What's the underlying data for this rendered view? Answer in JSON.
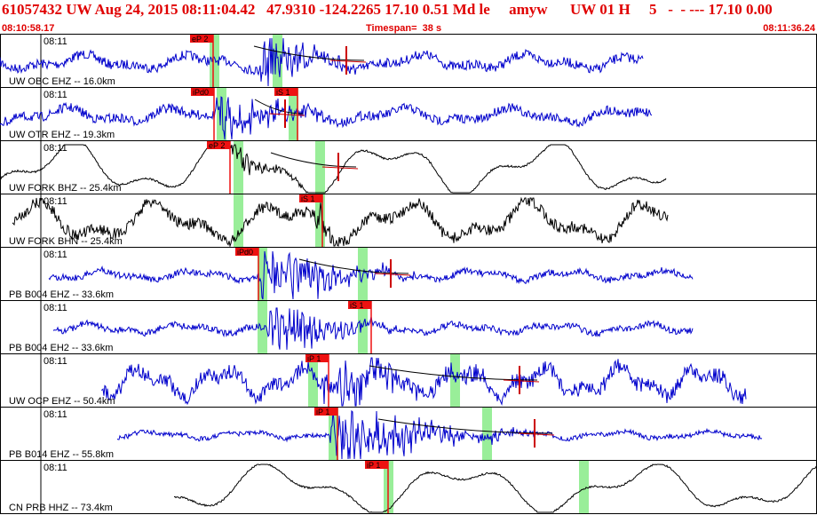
{
  "header": {
    "title": "61057432 UW Aug 24, 2015 08:11:04.42   47.9310 -124.2265 17.10 0.51 Md le     amyw      UW 01 H     5   -  - --- 17.10 0.00",
    "start_time": "08:10:58.17",
    "timespan": "Timespan=  38 s",
    "end_time": "08:11:36.24"
  },
  "colors": {
    "title": "#e00000",
    "trace_blue": "#0000cc",
    "trace_black": "#000000",
    "pick_box": "#ee1111",
    "shade": "#99ee99",
    "fit_line": "#cc0000"
  },
  "chart_data": {
    "type": "seismogram",
    "time_range": [
      "08:10:58.17",
      "08:11:36.24"
    ],
    "time_tick_label": "08:11",
    "panels": [
      {
        "label": "UW OBC EHZ -- 16.0km",
        "color": "blue",
        "picks": [
          {
            "label": "eP 2",
            "x": 226
          },
          {
            "label": "",
            "x": 390
          }
        ],
        "shades": [
          236,
          307
        ]
      },
      {
        "label": "UW OTR EHZ -- 19.3km",
        "color": "blue",
        "picks": [
          {
            "label": "iPd0",
            "x": 227
          },
          {
            "label": "iS 1",
            "x": 321
          }
        ],
        "shades": [
          244,
          325
        ]
      },
      {
        "label": "UW FORK BHZ -- 25.4km",
        "color": "black",
        "picks": [
          {
            "label": "eP 2",
            "x": 245
          },
          {
            "label": "",
            "x": 381
          }
        ],
        "shades": [
          263,
          355
        ]
      },
      {
        "label": "UW FORK BHN -- 25.4km",
        "color": "black",
        "picks": [
          {
            "label": "iS 1",
            "x": 349
          }
        ],
        "shades": [
          263,
          355
        ]
      },
      {
        "label": "PB B004 EHZ -- 33.6km",
        "color": "blue",
        "picks": [
          {
            "label": "iPd0",
            "x": 277
          },
          {
            "label": "",
            "x": 440
          }
        ],
        "shades": [
          290,
          403
        ]
      },
      {
        "label": "PB B004 EH2 -- 33.6km",
        "color": "blue",
        "picks": [
          {
            "label": "iS 1",
            "x": 404
          }
        ],
        "shades": [
          290,
          403
        ]
      },
      {
        "label": "UW OCP EHZ -- 50.4km",
        "color": "blue",
        "picks": [
          {
            "label": "iP 1",
            "x": 356
          },
          {
            "label": "",
            "x": 585
          }
        ],
        "shades": [
          347,
          507
        ]
      },
      {
        "label": "PB B014 EHZ -- 55.8km",
        "color": "blue",
        "picks": [
          {
            "label": "iP 1",
            "x": 366
          },
          {
            "label": "",
            "x": 602
          }
        ],
        "shades": [
          370,
          543
        ]
      },
      {
        "label": "CN PRB HHZ -- 73.4km",
        "color": "black",
        "picks": [
          {
            "label": "iP 1",
            "x": 423
          }
        ],
        "shades": [
          432,
          652
        ]
      }
    ]
  }
}
